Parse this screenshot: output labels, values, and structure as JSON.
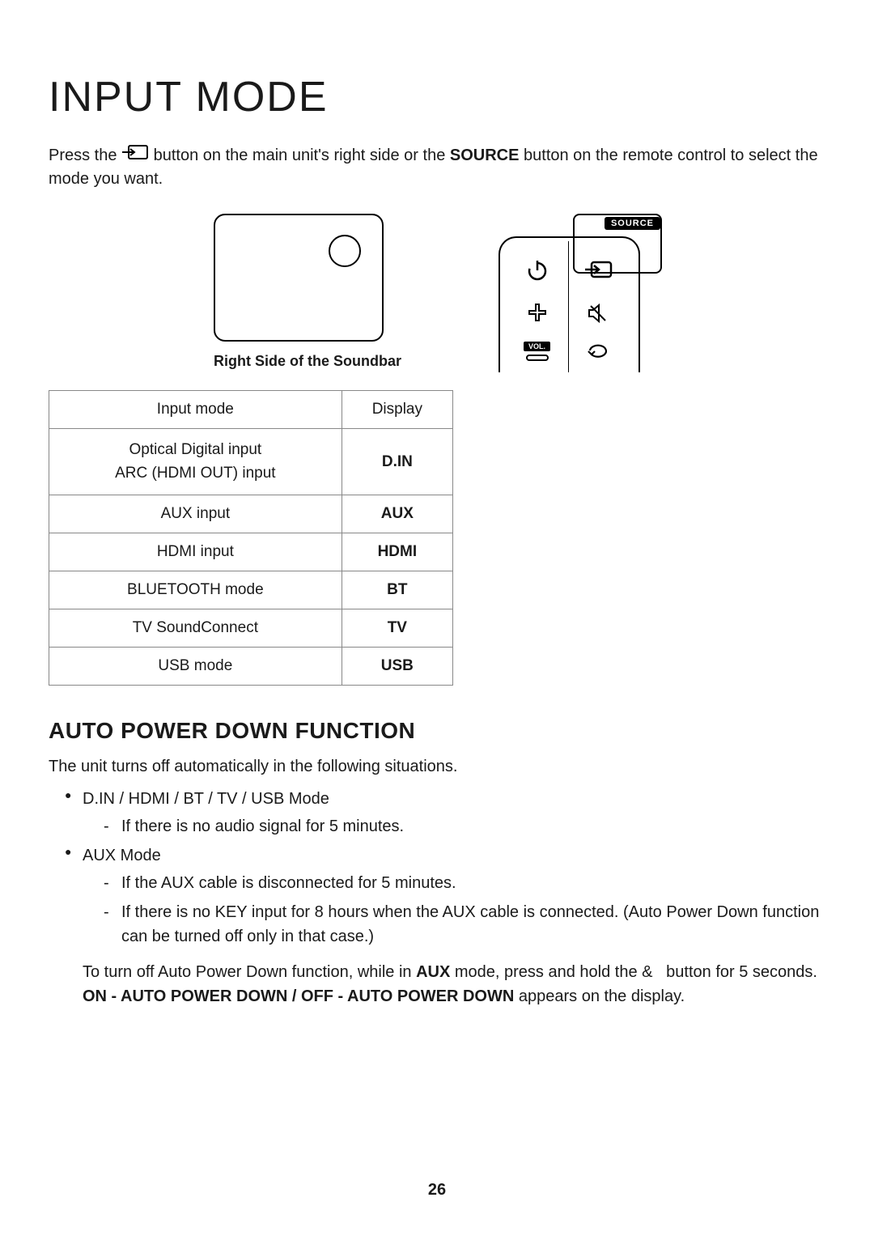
{
  "title": "INPUT MODE",
  "intro": {
    "before_icon": "Press the ",
    "after_icon": " button on the main unit's right side or the ",
    "source_word": "SOURCE",
    "after_source": " button on the remote control to select the mode you want."
  },
  "diagram": {
    "soundbar_caption": "Right Side of the Soundbar",
    "remote": {
      "source_label": "SOURCE",
      "vol_label": "VOL."
    }
  },
  "table": {
    "headers": [
      "Input mode",
      "Display"
    ],
    "rows": [
      {
        "mode_lines": [
          "Optical Digital input",
          "ARC (HDMI OUT) input"
        ],
        "display": "D.IN"
      },
      {
        "mode_lines": [
          "AUX input"
        ],
        "display": "AUX"
      },
      {
        "mode_lines": [
          "HDMI input"
        ],
        "display": "HDMI"
      },
      {
        "mode_lines": [
          "BLUETOOTH mode"
        ],
        "display": "BT"
      },
      {
        "mode_lines": [
          "TV SoundConnect"
        ],
        "display": "TV"
      },
      {
        "mode_lines": [
          "USB mode"
        ],
        "display": "USB"
      }
    ]
  },
  "auto_power": {
    "heading": "AUTO POWER DOWN FUNCTION",
    "intro": "The unit turns off automatically in the following situations.",
    "bullets": [
      {
        "label": "D.IN / HDMI / BT / TV / USB Mode",
        "items": [
          "If there is no audio signal for 5 minutes."
        ]
      },
      {
        "label": "AUX Mode",
        "items": [
          "If the AUX cable is disconnected for 5 minutes.",
          "If there is no KEY input for 8 hours when the AUX cable is connected. (Auto Power Down function can be turned off only in that case.)"
        ]
      }
    ],
    "closing_parts": {
      "p1": "To turn off Auto Power Down function, while in ",
      "aux": "AUX",
      "p2": " mode, press and hold the &   button for 5 seconds.",
      "line2_bold": "ON - AUTO POWER DOWN / OFF - AUTO POWER DOWN",
      "line2_rest": " appears on the display."
    }
  },
  "page_number": "26",
  "colors": {
    "text": "#1a1a1a",
    "border": "#888888",
    "bg": "#ffffff",
    "black": "#000000"
  }
}
